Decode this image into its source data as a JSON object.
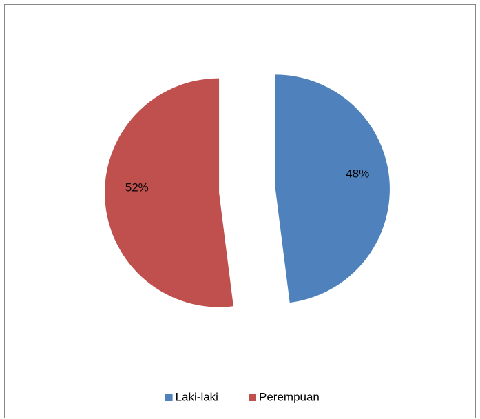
{
  "chart_data": {
    "type": "pie",
    "categories": [
      "Laki-laki",
      "Perempuan"
    ],
    "values": [
      48,
      52
    ],
    "value_labels": [
      "48%",
      "52%"
    ],
    "colors": [
      "#4f81bd",
      "#c0504d"
    ],
    "legend": "bottom"
  }
}
